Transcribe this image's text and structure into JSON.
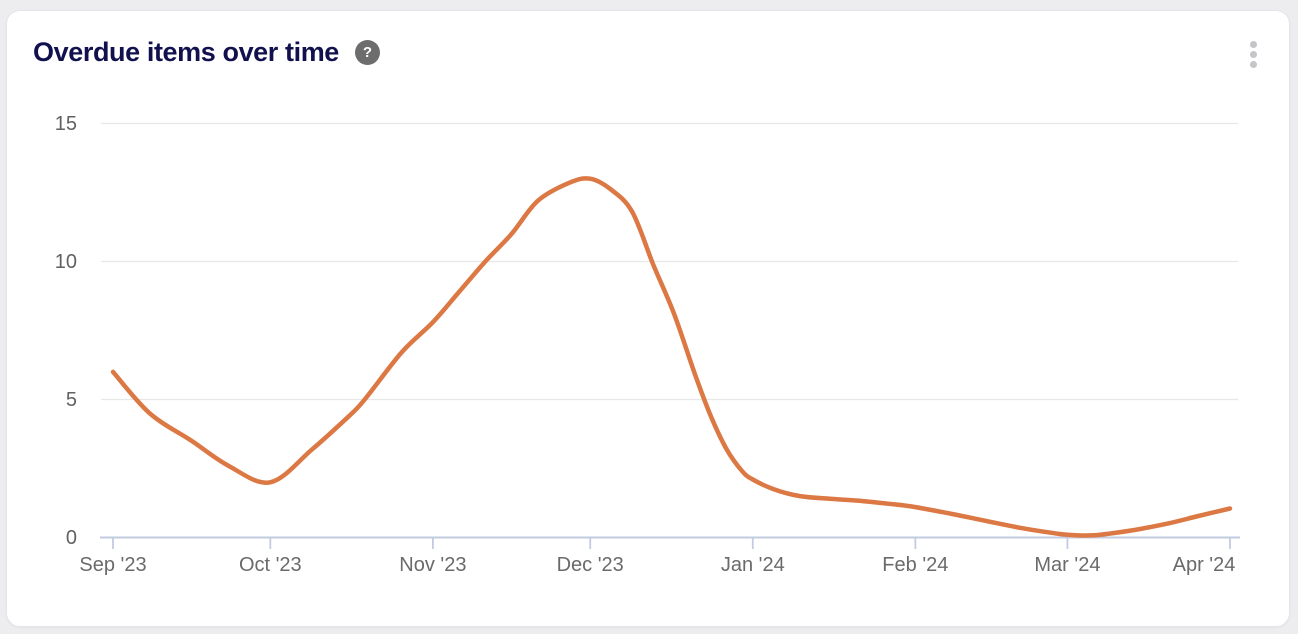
{
  "header": {
    "title": "Overdue items over time",
    "help_icon_glyph": "?"
  },
  "colors": {
    "page_bg": "#ededef",
    "card_bg": "#ffffff",
    "card_border": "#e5e5e9",
    "title": "#11114e",
    "help_bg": "#6d6d6d",
    "help_fg": "#ffffff",
    "kebab_dot": "#c4c4c9",
    "grid": "#e7e7e7",
    "axis": "#c3cbe2",
    "y_label": "#616161",
    "x_label": "#6a6a6a",
    "line": "#db7843"
  },
  "chart_data": {
    "type": "line",
    "title": "Overdue items over time",
    "categories": [
      "Sep '23",
      "Oct '23",
      "Nov '23",
      "Dec '23",
      "Jan '24",
      "Feb '24",
      "Mar '24",
      "Apr '24"
    ],
    "values": [
      6,
      2,
      8,
      13,
      2,
      1,
      0,
      1
    ],
    "xlabel": "",
    "ylabel": "",
    "ylim": [
      0,
      15
    ],
    "yticks": [
      0,
      5,
      10,
      15
    ],
    "grid": "horizontal",
    "legend": "none",
    "line_color": "#db7843",
    "smoothing": "spline",
    "curve_samples_day_value": [
      [
        0,
        6.0
      ],
      [
        7,
        4.5
      ],
      [
        15,
        3.5
      ],
      [
        22,
        2.6
      ],
      [
        30,
        2.0
      ],
      [
        38,
        3.2
      ],
      [
        45,
        4.4
      ],
      [
        48,
        5.0
      ],
      [
        55,
        6.7
      ],
      [
        61,
        7.8
      ],
      [
        66,
        8.9
      ],
      [
        71,
        10.0
      ],
      [
        76,
        11.0
      ],
      [
        81,
        12.2
      ],
      [
        87,
        12.85
      ],
      [
        91,
        13.0
      ],
      [
        95,
        12.6
      ],
      [
        99,
        11.8
      ],
      [
        103,
        9.9
      ],
      [
        107,
        8.1
      ],
      [
        111,
        5.9
      ],
      [
        114,
        4.4
      ],
      [
        117,
        3.2
      ],
      [
        120,
        2.4
      ],
      [
        122,
        2.1
      ],
      [
        126,
        1.75
      ],
      [
        131,
        1.5
      ],
      [
        137,
        1.4
      ],
      [
        143,
        1.32
      ],
      [
        148,
        1.22
      ],
      [
        153,
        1.1
      ],
      [
        160,
        0.85
      ],
      [
        166,
        0.62
      ],
      [
        173,
        0.35
      ],
      [
        179,
        0.17
      ],
      [
        182,
        0.1
      ],
      [
        187,
        0.08
      ],
      [
        194,
        0.25
      ],
      [
        201,
        0.5
      ],
      [
        207,
        0.78
      ],
      [
        213,
        1.05
      ]
    ],
    "category_day_offsets": [
      0,
      30,
      61,
      91,
      122,
      153,
      182,
      213
    ]
  }
}
